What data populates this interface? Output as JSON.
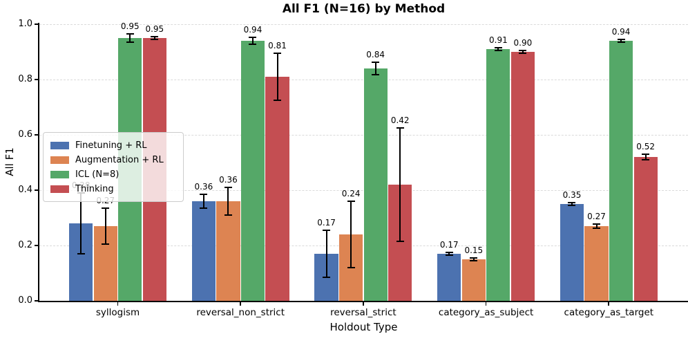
{
  "chart_data": {
    "type": "bar",
    "title": "All F1 (N=16) by Method",
    "xlabel": "Holdout Type",
    "ylabel": "All F1",
    "ylim": [
      0.0,
      1.0
    ],
    "ytick_labels": [
      "0.0",
      "0.2",
      "0.4",
      "0.6",
      "0.8",
      "1.0"
    ],
    "ytick_values": [
      0.0,
      0.2,
      0.4,
      0.6,
      0.8,
      1.0
    ],
    "grid": "horizontal dashed",
    "legend_position": "center-left",
    "categories": [
      "syllogism",
      "reversal_non_strict",
      "reversal_strict",
      "category_as_subject",
      "category_as_target"
    ],
    "series": [
      {
        "name": "Finetuning + RL",
        "color": "#4C72B0",
        "values": [
          0.28,
          0.36,
          0.17,
          0.17,
          0.35
        ],
        "errors": [
          0.11,
          0.025,
          0.085,
          0.006,
          0.005
        ],
        "labels": [
          "0.28",
          "0.36",
          "0.17",
          "0.17",
          "0.35"
        ]
      },
      {
        "name": "Augmentation + RL",
        "color": "#DD8452",
        "values": [
          0.27,
          0.36,
          0.24,
          0.15,
          0.27
        ],
        "errors": [
          0.065,
          0.05,
          0.12,
          0.005,
          0.008
        ],
        "labels": [
          "0.27",
          "0.36",
          "0.24",
          "0.15",
          "0.27"
        ]
      },
      {
        "name": "ICL (N=8)",
        "color": "#55A868",
        "values": [
          0.95,
          0.94,
          0.84,
          0.91,
          0.94
        ],
        "errors": [
          0.015,
          0.012,
          0.022,
          0.006,
          0.006
        ],
        "labels": [
          "0.95",
          "0.94",
          "0.84",
          "0.91",
          "0.94"
        ]
      },
      {
        "name": "Thinking",
        "color": "#C44E52",
        "values": [
          0.95,
          0.81,
          0.42,
          0.9,
          0.52
        ],
        "errors": [
          0.006,
          0.085,
          0.205,
          0.005,
          0.01
        ],
        "labels": [
          "0.95",
          "0.81",
          "0.42",
          "0.90",
          "0.52"
        ]
      }
    ]
  }
}
